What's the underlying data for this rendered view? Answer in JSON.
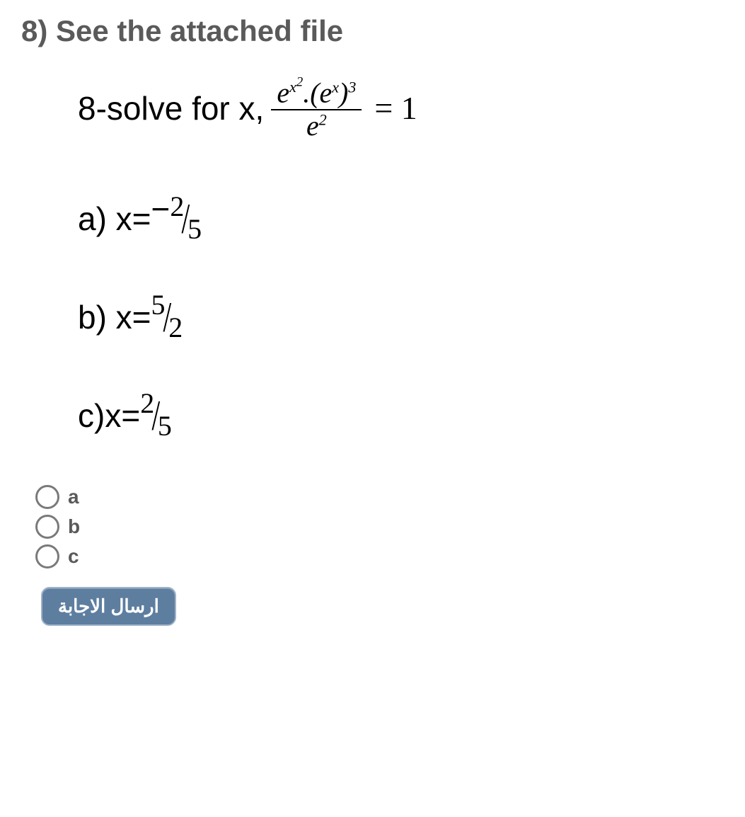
{
  "question": {
    "number": "8)",
    "header": "See the attached file",
    "prompt_prefix": "8-solve for x,",
    "equation": {
      "numerator_html": "e<sup>x<sup>2</sup></sup>.(e<sup>x</sup>)<sup>3</sup>",
      "denominator_html": "e<sup>2</sup>",
      "rhs": "= 1"
    },
    "options": [
      {
        "key": "a",
        "label_prefix": "a) x=",
        "sign": "−",
        "num": "2",
        "den": "5"
      },
      {
        "key": "b",
        "label_prefix": "b) x=",
        "sign": "",
        "num": "5",
        "den": "2"
      },
      {
        "key": "c",
        "label_prefix": "c)x=",
        "sign": "",
        "num": "2",
        "den": "5"
      }
    ]
  },
  "radios": [
    {
      "value": "a",
      "label": "a"
    },
    {
      "value": "b",
      "label": "b"
    },
    {
      "value": "c",
      "label": "c"
    }
  ],
  "submit_label": "ارسال الاجابة",
  "colors": {
    "header_text": "#5a5a5a",
    "body_text": "#000000",
    "radio_border": "#7a7a7a",
    "button_bg": "#5e7ea0",
    "button_border": "#9fb3c8",
    "button_text": "#ffffff",
    "background": "#ffffff"
  }
}
